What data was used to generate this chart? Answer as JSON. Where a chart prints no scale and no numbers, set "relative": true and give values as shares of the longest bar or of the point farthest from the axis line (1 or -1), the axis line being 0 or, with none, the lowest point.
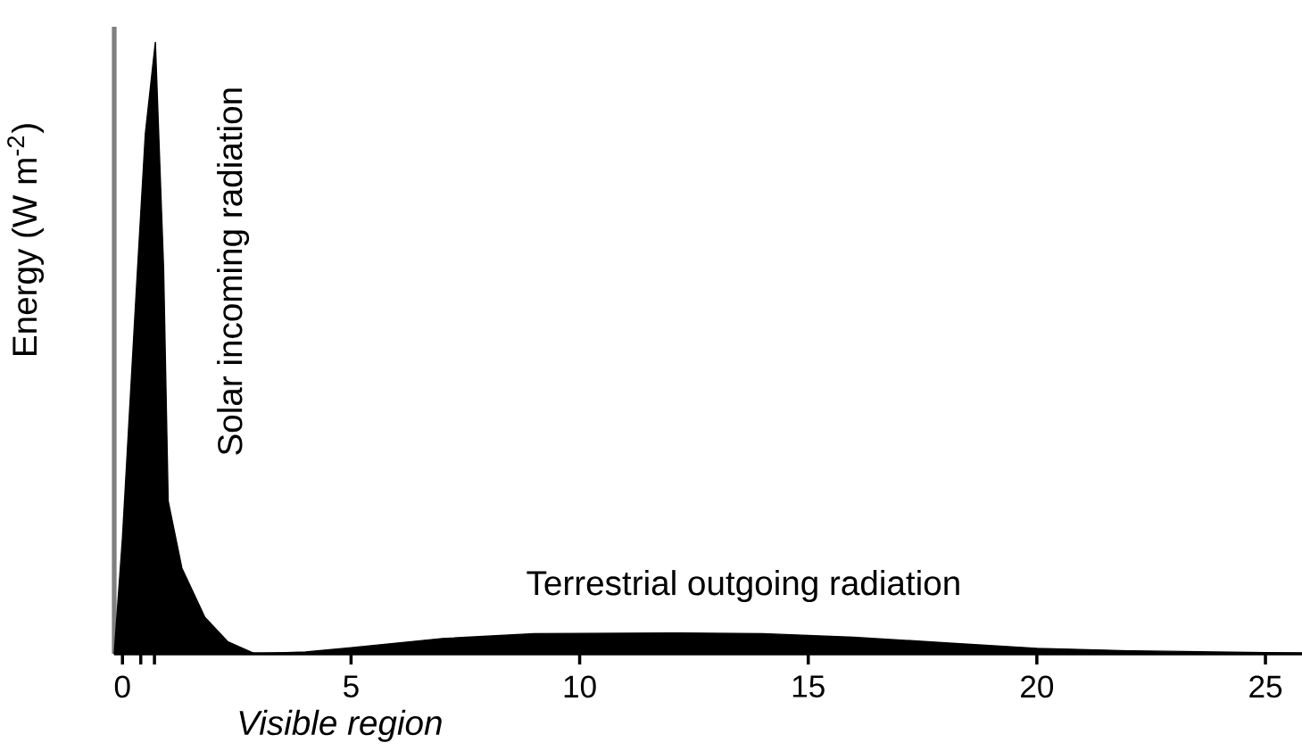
{
  "chart_data": {
    "type": "area",
    "relative": true,
    "ylabel": "Energy (W m$^{-2}$)",
    "x": [
      -0.18,
      0,
      0.3,
      0.5,
      0.72,
      0.9,
      1.0,
      1.3,
      1.8,
      2.3,
      2.9,
      4,
      5,
      7,
      9,
      12,
      14,
      16,
      18,
      20,
      22,
      25,
      25.8
    ],
    "series": [
      {
        "color": "#000000",
        "values": [
          0,
          0.19,
          0.59,
          0.85,
          1.0,
          0.63,
          0.25,
          0.14,
          0.06,
          0.02,
          0,
          null,
          null,
          null,
          null,
          null,
          null,
          null,
          null,
          null,
          null,
          null,
          null
        ]
      },
      {
        "color": "#000000",
        "values": [
          null,
          null,
          null,
          null,
          null,
          null,
          null,
          null,
          null,
          null,
          0,
          0.003,
          0.01,
          0.025,
          0.033,
          0.034,
          0.033,
          0.027,
          0.018,
          0.009,
          0.005,
          0.002,
          0.001
        ]
      }
    ],
    "xlim": [
      -0.18,
      25.8
    ],
    "xticks": [
      0,
      {
        "value": 0.4,
        "label": null
      },
      {
        "value": 0.7,
        "label": null
      },
      5,
      10,
      15,
      20,
      25
    ],
    "annotations": [
      "Solar incoming radiation",
      "Terrestrial outgoing radiation",
      "*Visible region*"
    ]
  }
}
